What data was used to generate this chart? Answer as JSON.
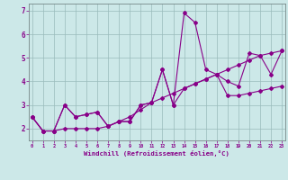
{
  "xlabel": "Windchill (Refroidissement éolien,°C)",
  "background_color": "#cce8e8",
  "line_color": "#880088",
  "grid_color": "#99bbbb",
  "x_ticks": [
    0,
    1,
    2,
    3,
    4,
    5,
    6,
    7,
    8,
    9,
    10,
    11,
    12,
    13,
    14,
    15,
    16,
    17,
    18,
    19,
    20,
    21,
    22,
    23
  ],
  "y_ticks": [
    2,
    3,
    4,
    5,
    6,
    7
  ],
  "xlim": [
    -0.3,
    23.3
  ],
  "ylim": [
    1.5,
    7.3
  ],
  "series": [
    [
      2.5,
      1.9,
      1.9,
      3.0,
      2.5,
      2.6,
      2.7,
      2.1,
      2.3,
      2.3,
      3.0,
      3.1,
      4.5,
      3.0,
      6.9,
      6.5,
      4.5,
      4.3,
      4.0,
      3.8,
      5.2,
      5.1,
      4.3,
      5.3
    ],
    [
      2.5,
      1.9,
      1.9,
      2.0,
      2.0,
      2.0,
      2.0,
      2.1,
      2.3,
      2.5,
      2.8,
      3.1,
      3.3,
      3.5,
      3.7,
      3.9,
      4.1,
      4.3,
      4.5,
      4.7,
      4.9,
      5.1,
      5.2,
      5.3
    ],
    [
      2.5,
      1.9,
      1.9,
      3.0,
      2.5,
      2.6,
      2.7,
      2.1,
      2.3,
      2.3,
      3.0,
      3.1,
      4.5,
      3.0,
      3.7,
      3.9,
      4.1,
      4.3,
      3.4,
      3.4,
      3.5,
      3.6,
      3.7,
      3.8
    ]
  ]
}
